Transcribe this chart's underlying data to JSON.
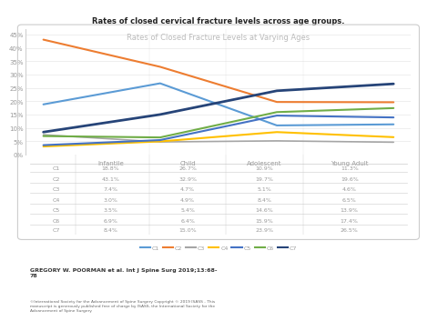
{
  "title_main": "Rates of closed cervical fracture levels across age groups.",
  "chart_title": "Rates of Closed Fracture Levels at Varying Ages",
  "age_groups": [
    "Infantile",
    "Child",
    "Adolescent",
    "Young Adult"
  ],
  "series_order": [
    "C1",
    "C2",
    "C3",
    "C4",
    "C5",
    "C6",
    "C7"
  ],
  "series": {
    "C1": {
      "values": [
        18.8,
        26.7,
        10.9,
        11.3
      ]
    },
    "C2": {
      "values": [
        43.1,
        32.9,
        19.7,
        19.6
      ]
    },
    "C3": {
      "values": [
        7.4,
        4.7,
        5.1,
        4.6
      ]
    },
    "C4": {
      "values": [
        3.0,
        4.9,
        8.4,
        6.5
      ]
    },
    "C5": {
      "values": [
        3.5,
        5.4,
        14.6,
        13.9
      ]
    },
    "C6": {
      "values": [
        6.9,
        6.4,
        15.9,
        17.4
      ]
    },
    "C7": {
      "values": [
        8.4,
        15.0,
        23.9,
        26.5
      ]
    }
  },
  "legend_colors": {
    "C1": "#5B9BD5",
    "C2": "#ED7D31",
    "C3": "#A5A5A5",
    "C4": "#FFC000",
    "C5": "#4472C4",
    "C6": "#70AD47",
    "C7": "#264478"
  },
  "line_widths": {
    "C1": 1.5,
    "C2": 1.5,
    "C3": 1.2,
    "C4": 1.5,
    "C5": 1.5,
    "C6": 1.5,
    "C7": 2.0
  },
  "yticks": [
    0,
    5,
    10,
    15,
    20,
    25,
    30,
    35,
    40,
    45
  ],
  "ylim": [
    0,
    47
  ],
  "table_data": {
    "C1": [
      "18.8%",
      "26.7%",
      "10.9%",
      "11.3%"
    ],
    "C2": [
      "43.1%",
      "32.9%",
      "19.7%",
      "19.6%"
    ],
    "C3": [
      "7.4%",
      "4.7%",
      "5.1%",
      "4.6%"
    ],
    "C4": [
      "3.0%",
      "4.9%",
      "8.4%",
      "6.5%"
    ],
    "C5": [
      "3.5%",
      "5.4%",
      "14.6%",
      "13.9%"
    ],
    "C6": [
      "6.9%",
      "6.4%",
      "15.9%",
      "17.4%"
    ],
    "C7": [
      "8.4%",
      "15.0%",
      "23.9%",
      "26.5%"
    ]
  },
  "author_text": "GREGORY W. POORMAN et al. Int J Spine Surg 2019;13:68-\n78",
  "copyright_text": "©International Society for the Advancement of Spine Surgery Copyright © 2019 ISASS - This\nmanuscript is generously published free of charge by ISASS, the International Society for the\nAdvancement of Spine Surgery",
  "outer_bg": "#FFFFFF",
  "box_bg": "#FFFFFF",
  "box_border": "#CCCCCC",
  "grid_color": "#E8E8E8",
  "text_gray": "#999999",
  "title_color": "#222222",
  "chart_title_color": "#BBBBBB"
}
